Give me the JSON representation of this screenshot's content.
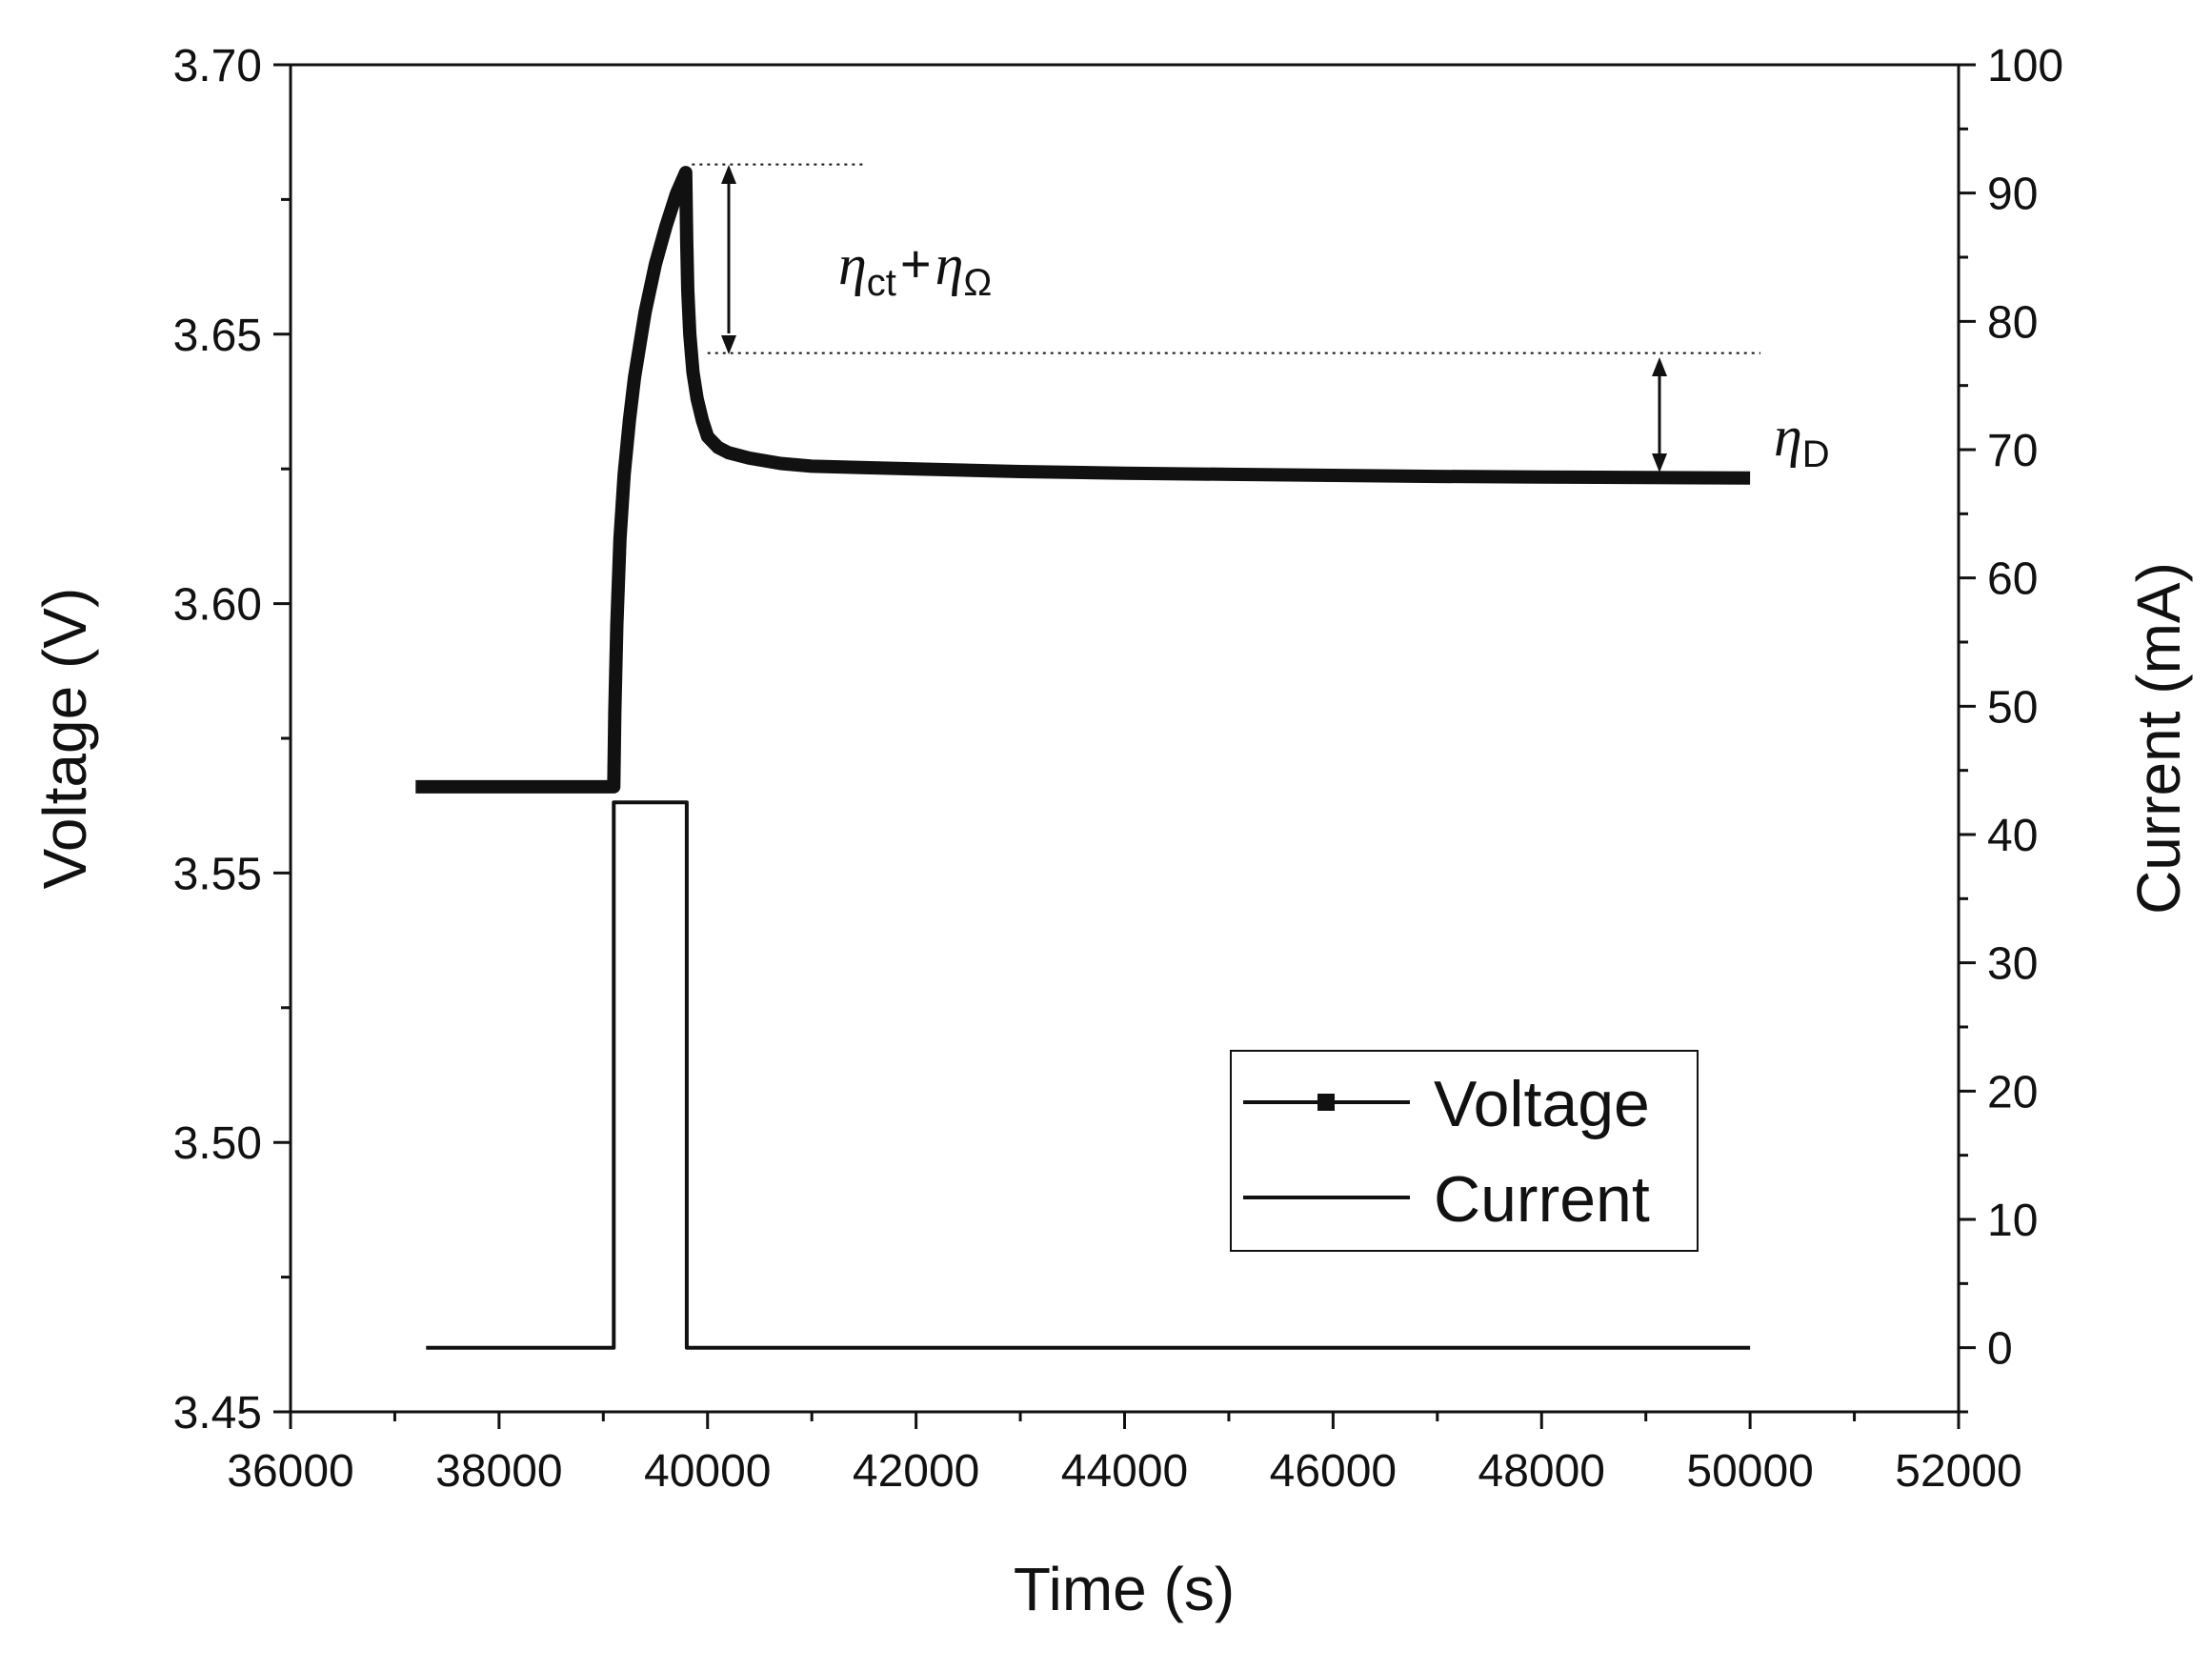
{
  "chart_data": {
    "type": "line",
    "xlabel": "Time (s)",
    "ylabel": "Voltage (V)",
    "y2label": "Current (mA)",
    "xlim": [
      36000,
      52000
    ],
    "ylim": [
      3.45,
      3.7
    ],
    "y2lim": [
      -5,
      100
    ],
    "x_ticks": [
      "36000",
      "38000",
      "40000",
      "42000",
      "44000",
      "46000",
      "48000",
      "50000",
      "52000"
    ],
    "y_ticks": [
      "3.45",
      "3.50",
      "3.55",
      "3.60",
      "3.65",
      "3.70"
    ],
    "y2_ticks": [
      "0",
      "10",
      "20",
      "30",
      "40",
      "50",
      "60",
      "70",
      "80",
      "90",
      "100"
    ],
    "legend_position": "bottom-right",
    "series": [
      {
        "name": "Voltage",
        "axis": "left",
        "x": [
          37200,
          37600,
          38200,
          38800,
          39100,
          39110,
          39130,
          39160,
          39200,
          39250,
          39300,
          39400,
          39500,
          39600,
          39700,
          39790,
          39800,
          39810,
          39830,
          39860,
          39900,
          39950,
          40000,
          40100,
          40200,
          40400,
          40700,
          41000,
          42000,
          43000,
          44000,
          45000,
          46000,
          47000,
          48000,
          49000,
          50000
        ],
        "values": [
          3.566,
          3.566,
          3.566,
          3.566,
          3.566,
          3.58,
          3.596,
          3.612,
          3.624,
          3.634,
          3.642,
          3.654,
          3.663,
          3.67,
          3.676,
          3.68,
          3.667,
          3.658,
          3.65,
          3.643,
          3.638,
          3.634,
          3.631,
          3.629,
          3.628,
          3.627,
          3.626,
          3.6255,
          3.625,
          3.6245,
          3.6242,
          3.624,
          3.6238,
          3.6236,
          3.6235,
          3.6234,
          3.6233
        ]
      },
      {
        "name": "Current",
        "axis": "right",
        "x": [
          37300,
          39100,
          39100,
          39800,
          39800,
          50000
        ],
        "values": [
          0,
          0,
          42.5,
          42.5,
          0,
          0
        ]
      }
    ],
    "annotations": [
      {
        "text": "ηct+ηΩ",
        "from_voltage": 3.6815,
        "to_voltage": 3.6465
      },
      {
        "text": "ηD",
        "from_voltage": 3.6465,
        "to_voltage": 3.6235
      }
    ]
  },
  "legend": {
    "voltage": "Voltage",
    "current": "Current"
  },
  "labels": {
    "eta": "η",
    "sub_ct": "ct",
    "plus": "+",
    "sub_omega": "Ω",
    "sub_d": "D"
  }
}
